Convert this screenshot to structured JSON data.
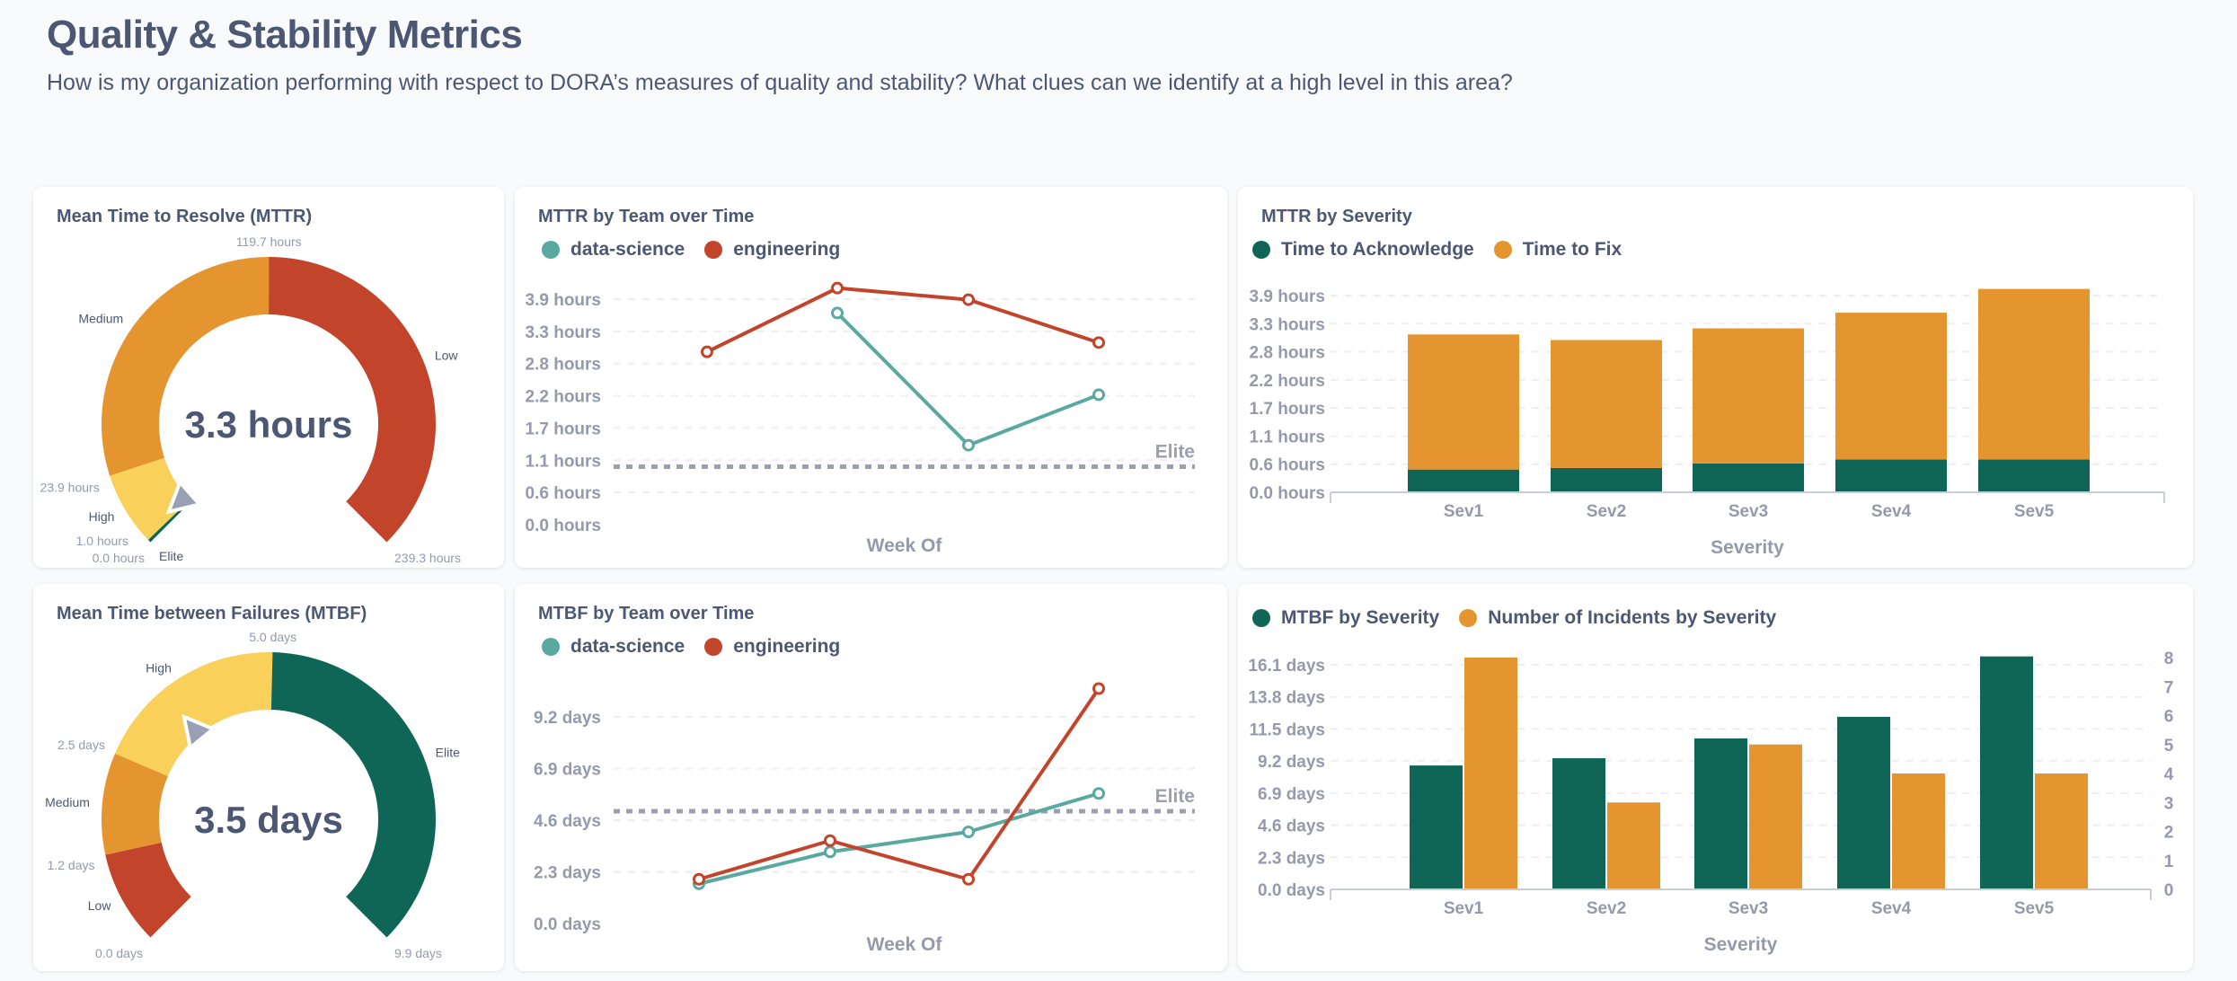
{
  "header": {
    "title": "Quality & Stability Metrics",
    "subtitle": "How is my organization performing with respect to DORA’s measures of quality and stability? What clues can we identify at a high level in this area?"
  },
  "colors": {
    "elite": "#0f6657",
    "high": "#f8d05a",
    "medium": "#e59530",
    "low": "#c2452b",
    "data_science": "#5aa9a0",
    "engineering": "#c2452b",
    "text": "#4c5773",
    "axis": "#949aab"
  },
  "chart_data": [
    {
      "type": "gauge",
      "title": "Mean Time to Resolve (MTTR)",
      "value": 3.3,
      "value_label": "3.3 hours",
      "min": 0,
      "max": 239.3,
      "segments": [
        {
          "label": "Elite",
          "from": 0,
          "to": 1.0,
          "color": "#0f6657"
        },
        {
          "label": "High",
          "from": 1.0,
          "to": 23.9,
          "color": "#f8d05a"
        },
        {
          "label": "Medium",
          "from": 23.9,
          "to": 119.7,
          "color": "#e59530"
        },
        {
          "label": "Low",
          "from": 119.7,
          "to": 239.3,
          "color": "#c2452b"
        }
      ],
      "boundaries": [
        {
          "value": 0,
          "label": "0.0 hours"
        },
        {
          "value": 1.0,
          "label": "1.0 hours"
        },
        {
          "value": 23.9,
          "label": "23.9 hours"
        },
        {
          "value": 119.7,
          "label": "119.7 hours"
        },
        {
          "value": 239.3,
          "label": "239.3 hours"
        }
      ]
    },
    {
      "type": "line",
      "title": "MTTR by Team over Time",
      "xlabel": "Week Of",
      "y_ticks": [
        0,
        0.556,
        1.111,
        1.667,
        2.222,
        2.778,
        3.333,
        3.889
      ],
      "y_tick_labels": [
        "0.0 hours",
        "0.6 hours",
        "1.1 hours",
        "1.7 hours",
        "2.2 hours",
        "2.8 hours",
        "3.3 hours",
        "3.9 hours"
      ],
      "goal": {
        "label": "Elite",
        "value": 1.0
      },
      "series": [
        {
          "name": "data-science",
          "color": "#5aa9a0",
          "values": [
            null,
            3.65,
            1.37,
            2.24
          ]
        },
        {
          "name": "engineering",
          "color": "#c2452b",
          "values": [
            2.98,
            4.08,
            3.88,
            3.14
          ]
        }
      ],
      "grid": true,
      "legend": "top-left"
    },
    {
      "type": "bar",
      "stacked": true,
      "title": "MTTR by Severity",
      "xlabel": "Severity",
      "categories": [
        "Sev1",
        "Sev2",
        "Sev3",
        "Sev4",
        "Sev5"
      ],
      "y_ticks": [
        0,
        0.556,
        1.111,
        1.667,
        2.222,
        2.778,
        3.333,
        3.889
      ],
      "y_tick_labels": [
        "0.0 hours",
        "0.6 hours",
        "1.1 hours",
        "1.7 hours",
        "2.2 hours",
        "2.8 hours",
        "3.3 hours",
        "3.9 hours"
      ],
      "series": [
        {
          "name": "Time to Acknowledge",
          "color": "#0f6657",
          "values": [
            0.45,
            0.48,
            0.57,
            0.65,
            0.65
          ]
        },
        {
          "name": "Time to Fix",
          "color": "#e59530",
          "values": [
            2.67,
            2.53,
            2.67,
            2.9,
            3.37
          ]
        }
      ],
      "grid": true,
      "legend": "top-left"
    },
    {
      "type": "gauge",
      "title": "Mean Time between Failures (MTBF)",
      "value": 3.5,
      "value_label": "3.5 days",
      "min": 0,
      "max": 9.9,
      "segments": [
        {
          "label": "Low",
          "from": 0,
          "to": 1.2,
          "color": "#c2452b"
        },
        {
          "label": "Medium",
          "from": 1.2,
          "to": 2.5,
          "color": "#e59530"
        },
        {
          "label": "High",
          "from": 2.5,
          "to": 5.0,
          "color": "#f8d05a"
        },
        {
          "label": "Elite",
          "from": 5.0,
          "to": 9.9,
          "color": "#0f6657"
        }
      ],
      "boundaries": [
        {
          "value": 0,
          "label": "0.0 days"
        },
        {
          "value": 1.2,
          "label": "1.2 days"
        },
        {
          "value": 2.5,
          "label": "2.5 days"
        },
        {
          "value": 5.0,
          "label": "5.0 days"
        },
        {
          "value": 9.9,
          "label": "9.9 days"
        }
      ]
    },
    {
      "type": "line",
      "title": "MTBF by Team over Time",
      "xlabel": "Week Of",
      "y_ticks": [
        0,
        2.3,
        4.6,
        6.9,
        9.2
      ],
      "y_tick_labels": [
        "0.0 days",
        "2.3 days",
        "4.6 days",
        "6.9 days",
        "9.2 days"
      ],
      "goal": {
        "label": "Elite",
        "value": 5.0
      },
      "series": [
        {
          "name": "data-science",
          "color": "#5aa9a0",
          "values": [
            1.77,
            3.19,
            4.08,
            5.79
          ]
        },
        {
          "name": "engineering",
          "color": "#c2452b",
          "values": [
            1.97,
            3.69,
            1.97,
            10.46
          ]
        }
      ],
      "grid": true,
      "legend": "top-left"
    },
    {
      "type": "bar",
      "stacked": false,
      "xlabel": "Severity",
      "categories": [
        "Sev1",
        "Sev2",
        "Sev3",
        "Sev4",
        "Sev5"
      ],
      "y_ticks": [
        0,
        2.3,
        4.6,
        6.9,
        9.2,
        11.5,
        13.8,
        16.1
      ],
      "y_tick_labels": [
        "0.0 days",
        "2.3 days",
        "4.6 days",
        "6.9 days",
        "9.2 days",
        "11.5 days",
        "13.8 days",
        "16.1 days"
      ],
      "y2_ticks": [
        0,
        1,
        2,
        3,
        4,
        5,
        6,
        7,
        8
      ],
      "y2_tick_labels": [
        "0",
        "1",
        "2",
        "3",
        "4",
        "5",
        "6",
        "7",
        "8"
      ],
      "series": [
        {
          "name": "MTBF by Severity",
          "color": "#0f6657",
          "axis": "left",
          "values": [
            8.88,
            9.4,
            10.82,
            12.37,
            16.7
          ]
        },
        {
          "name": "Number of Incidents by Severity",
          "color": "#e59530",
          "axis": "right",
          "values": [
            8,
            3,
            5,
            4,
            4
          ]
        }
      ],
      "grid": true,
      "legend": "top-left"
    }
  ]
}
